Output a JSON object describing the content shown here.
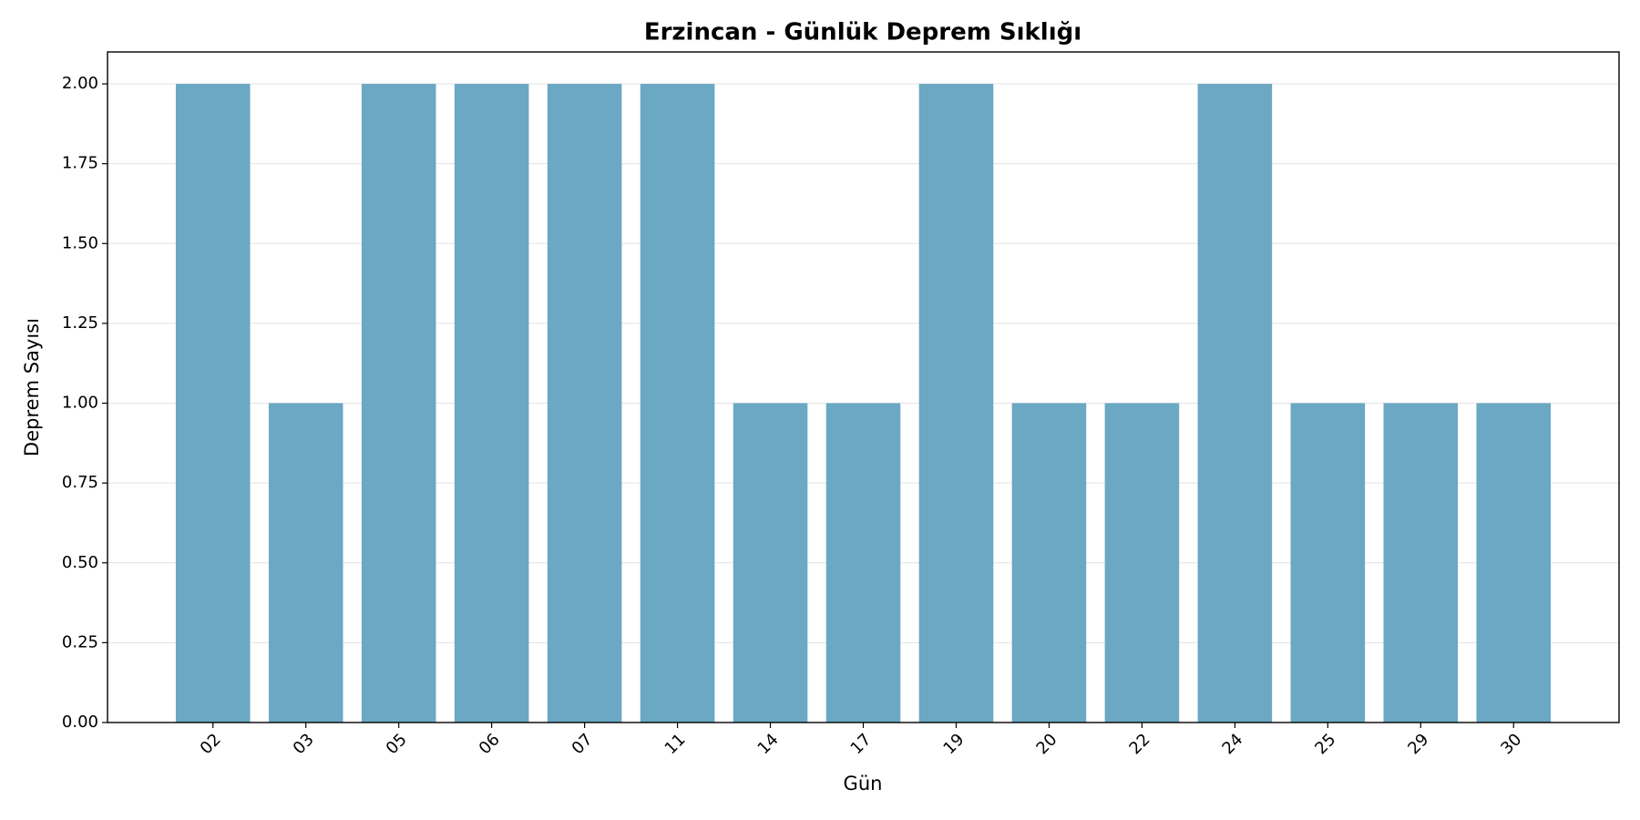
{
  "chart_data": {
    "type": "bar",
    "title": "Erzincan - Günlük Deprem Sıklığı",
    "x_label": "Gün",
    "y_label": "Deprem Sayısı",
    "categories": [
      "02",
      "03",
      "05",
      "06",
      "07",
      "11",
      "14",
      "17",
      "19",
      "20",
      "22",
      "24",
      "25",
      "29",
      "30"
    ],
    "values": [
      2,
      1,
      2,
      2,
      2,
      2,
      1,
      1,
      2,
      1,
      1,
      2,
      1,
      1,
      1
    ],
    "color": "#6aa8c4",
    "ylim": [
      0,
      2.1
    ],
    "yticks": [
      {
        "value": 0,
        "label": "0.00"
      },
      {
        "value": 0.25,
        "label": "0.25"
      },
      {
        "value": 0.5,
        "label": "0.50"
      },
      {
        "value": 0.75,
        "label": "0.75"
      },
      {
        "value": 1,
        "label": "1.00"
      },
      {
        "value": 1.25,
        "label": "1.25"
      },
      {
        "value": 1.5,
        "label": "1.50"
      },
      {
        "value": 1.75,
        "label": "1.75"
      },
      {
        "value": 2,
        "label": "2.00"
      }
    ],
    "grid": true
  }
}
